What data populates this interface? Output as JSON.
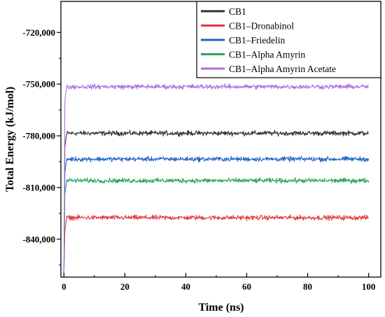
{
  "chart_data": {
    "type": "line",
    "xlabel": "Time (ns)",
    "ylabel": "Total Energy (kJ/mol)",
    "xlim": [
      -1,
      104
    ],
    "ylim": [
      -862000,
      -702000
    ],
    "x_ticks": [
      0,
      20,
      40,
      60,
      80,
      100
    ],
    "x_tick_labels": [
      "0",
      "20",
      "40",
      "60",
      "80",
      "100"
    ],
    "y_ticks": [
      -720000,
      -750000,
      -780000,
      -810000,
      -840000
    ],
    "y_tick_labels": [
      "-720,000",
      "-750,000",
      "-780,000",
      "-810,000",
      "-840,000"
    ],
    "grid": false,
    "legend_position": "top-right",
    "series": [
      {
        "name": "CB1",
        "color": "#333333",
        "start_value": -860000,
        "equilibrium_value": -778500,
        "noise_amplitude": 1500,
        "x_range": [
          0,
          100
        ]
      },
      {
        "name": "CB1–Dronabinol",
        "color": "#e03a3e",
        "start_value": -860000,
        "equilibrium_value": -827500,
        "noise_amplitude": 1500,
        "x_range": [
          0,
          100
        ]
      },
      {
        "name": "CB1–Friedelin",
        "color": "#1f63c6",
        "start_value": -860000,
        "equilibrium_value": -793500,
        "noise_amplitude": 1500,
        "x_range": [
          0,
          100
        ]
      },
      {
        "name": "CB1–Alpha Amyrin",
        "color": "#2aa35f",
        "start_value": -860000,
        "equilibrium_value": -806000,
        "noise_amplitude": 1500,
        "x_range": [
          0,
          100
        ]
      },
      {
        "name": "CB1–Alpha Amyrin Acetate",
        "color": "#b06fe0",
        "start_value": -860000,
        "equilibrium_value": -751500,
        "noise_amplitude": 1500,
        "x_range": [
          0,
          100
        ]
      }
    ]
  }
}
